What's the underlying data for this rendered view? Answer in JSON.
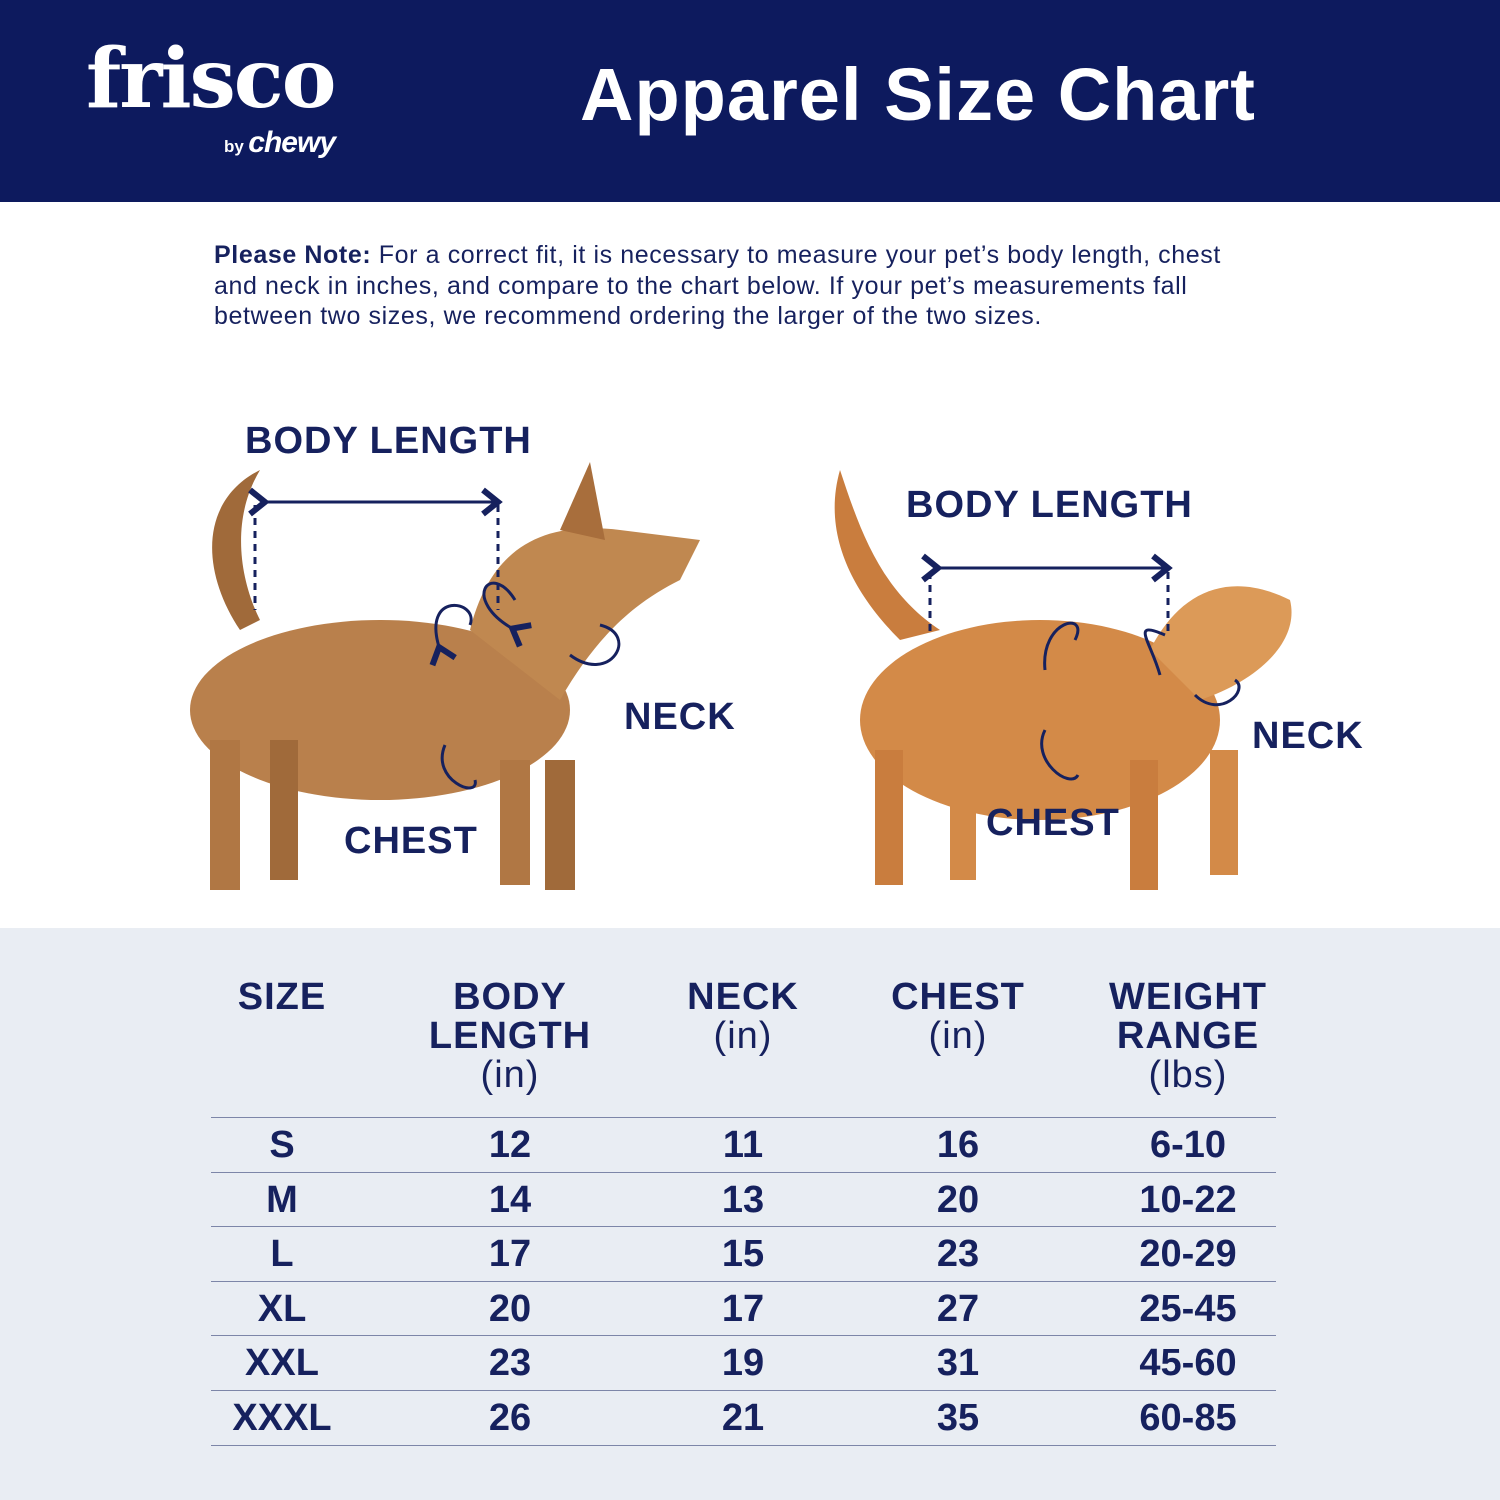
{
  "header": {
    "logo_main": "frisco",
    "logo_by": "by",
    "logo_brand": "chewy",
    "title": "Apparel Size Chart",
    "bg_color": "#0d1a5e"
  },
  "note": {
    "label": "Please Note:",
    "text": " For a correct fit, it is necessary to measure your pet’s body length, chest and neck in inches, and compare to the chart below. If your pet’s measurements fall between two sizes, we recommend ordering the larger of the two sizes."
  },
  "dog": {
    "body_length": "BODY LENGTH",
    "neck": "NECK",
    "chest": "CHEST"
  },
  "cat": {
    "body_length": "BODY LENGTH",
    "neck": "NECK",
    "chest": "CHEST"
  },
  "table": {
    "headers": [
      {
        "title": "SIZE",
        "unit": ""
      },
      {
        "title": "BODY LENGTH",
        "unit": "(in)"
      },
      {
        "title": "NECK",
        "unit": "(in)"
      },
      {
        "title": "CHEST",
        "unit": "(in)"
      },
      {
        "title": "WEIGHT RANGE",
        "unit": "(lbs)"
      }
    ],
    "rows": [
      [
        "S",
        "12",
        "11",
        "16",
        "6-10"
      ],
      [
        "M",
        "14",
        "13",
        "20",
        "10-22"
      ],
      [
        "L",
        "17",
        "15",
        "23",
        "20-29"
      ],
      [
        "XL",
        "20",
        "17",
        "27",
        "25-45"
      ],
      [
        "XXL",
        "23",
        "19",
        "31",
        "45-60"
      ],
      [
        "XXXL",
        "26",
        "21",
        "35",
        "60-85"
      ]
    ]
  }
}
